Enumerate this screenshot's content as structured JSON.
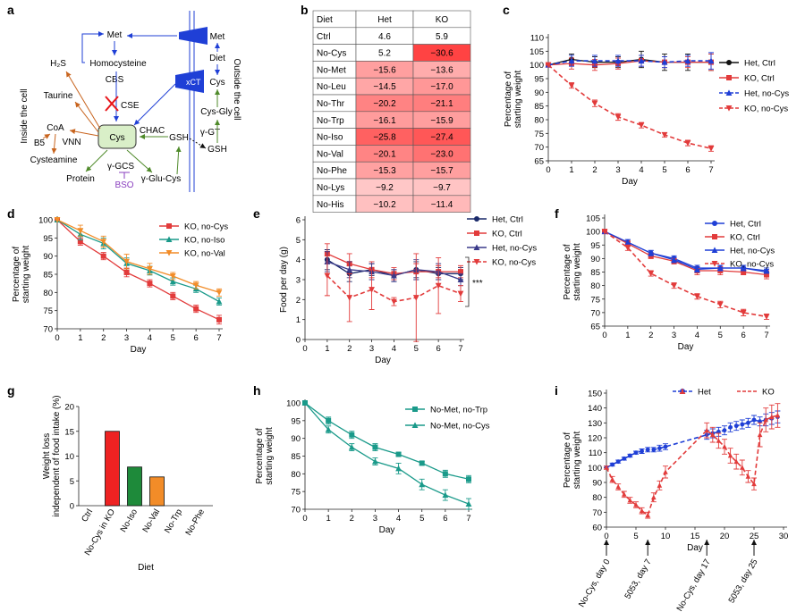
{
  "panel_labels": [
    "a",
    "b",
    "c",
    "d",
    "e",
    "f",
    "g",
    "h",
    "i"
  ],
  "colors": {
    "blue": "#1f3fd6",
    "black": "#111111",
    "red": "#e23b3b",
    "green": "#1e8a3a",
    "orange": "#f28c28",
    "teal": "#1a9a8a",
    "purple": "#8a3fbf",
    "brown": "#c8641e",
    "olive": "#4f8a2a"
  },
  "diagram": {
    "side_inside": "Inside the cell",
    "side_outside": "Outside the cell",
    "nodes": {
      "met_in": "Met",
      "homocysteine": "Homocysteine",
      "cbs": "CBS",
      "cse": "CSE",
      "h2s": "H₂S",
      "taurine": "Taurine",
      "coa": "CoA",
      "b5": "B5",
      "vnn": "VNN",
      "cysteamine": "Cysteamine",
      "cys_in": "Cys",
      "chac": "CHAC",
      "gsh_in": "GSH",
      "protein": "Protein",
      "ggcs": "γ-GCS",
      "bso": "BSO",
      "gglucys": "γ-Glu-Cys",
      "xct": "xCT",
      "met_out": "Met",
      "diet": "Diet",
      "cys_out": "Cys",
      "cysgly": "Cys-Gly",
      "ggt": "γ-GT",
      "gsh_out": "GSH"
    }
  },
  "chart_data": [
    {
      "panel": "b",
      "type": "table",
      "columns": [
        "Diet",
        "Het",
        "KO"
      ],
      "rows": [
        {
          "diet": "Ctrl",
          "het": 4.6,
          "ko": 5.9,
          "het_label": "4.6",
          "ko_label": "5.9"
        },
        {
          "diet": "No-Cys",
          "het": 5.2,
          "ko": -30.6,
          "het_label": "5.2",
          "ko_label": "−30.6"
        },
        {
          "diet": "No-Met",
          "het": -15.6,
          "ko": -13.6,
          "het_label": "−15.6",
          "ko_label": "−13.6"
        },
        {
          "diet": "No-Leu",
          "het": -14.5,
          "ko": -17.0,
          "het_label": "−14.5",
          "ko_label": "−17.0"
        },
        {
          "diet": "No-Thr",
          "het": -20.2,
          "ko": -21.1,
          "het_label": "−20.2",
          "ko_label": "−21.1"
        },
        {
          "diet": "No-Trp",
          "het": -16.1,
          "ko": -15.9,
          "het_label": "−16.1",
          "ko_label": "−15.9"
        },
        {
          "diet": "No-Iso",
          "het": -25.8,
          "ko": -27.4,
          "het_label": "−25.8",
          "ko_label": "−27.4"
        },
        {
          "diet": "No-Val",
          "het": -20.1,
          "ko": -23.0,
          "het_label": "−20.1",
          "ko_label": "−23.0"
        },
        {
          "diet": "No-Phe",
          "het": -15.3,
          "ko": -15.7,
          "het_label": "−15.3",
          "ko_label": "−15.7"
        },
        {
          "diet": "No-Lys",
          "het": -9.2,
          "ko": -9.7,
          "het_label": "−9.2",
          "ko_label": "−9.7"
        },
        {
          "diet": "No-His",
          "het": -10.2,
          "ko": -11.4,
          "het_label": "−10.2",
          "ko_label": "−11.4"
        }
      ]
    },
    {
      "panel": "c",
      "type": "line",
      "xlabel": "Day",
      "ylabel": "Percentage of starting weight",
      "xlim": [
        0,
        7
      ],
      "ylim": [
        65,
        110
      ],
      "xticks": [
        0,
        1,
        2,
        3,
        4,
        5,
        6,
        7
      ],
      "yticks": [
        65,
        70,
        75,
        80,
        85,
        90,
        95,
        100,
        105,
        110
      ],
      "legend_position": "right",
      "series": [
        {
          "name": "Het, Ctrl",
          "color": "#111111",
          "marker": "circle",
          "dash": false,
          "x": [
            0,
            1,
            2,
            3,
            4,
            5,
            6,
            7
          ],
          "y": [
            100,
            102,
            101,
            101,
            102,
            101,
            101,
            101
          ],
          "err": [
            0,
            2,
            2,
            2,
            3,
            3,
            3,
            3
          ]
        },
        {
          "name": "KO, Ctrl",
          "color": "#e23b3b",
          "marker": "square",
          "dash": false,
          "x": [
            0,
            1,
            2,
            3,
            4,
            5,
            6,
            7
          ],
          "y": [
            100,
            100.5,
            100,
            100.5,
            101.5,
            101,
            101,
            101
          ],
          "err": [
            0,
            2,
            2,
            2,
            2,
            2,
            2,
            3
          ]
        },
        {
          "name": "Het, no-Cys",
          "color": "#1f3fd6",
          "marker": "triangle",
          "dash": true,
          "x": [
            0,
            1,
            2,
            3,
            4,
            5,
            6,
            7
          ],
          "y": [
            100,
            101.5,
            101.5,
            101.5,
            101.5,
            101,
            101.5,
            101.5
          ],
          "err": [
            0,
            2,
            2,
            2,
            2,
            2,
            2,
            3
          ]
        },
        {
          "name": "KO, no-Cys",
          "color": "#e23b3b",
          "marker": "triangle-down",
          "dash": true,
          "x": [
            0,
            1,
            2,
            3,
            4,
            5,
            6,
            7
          ],
          "y": [
            100,
            92.5,
            86,
            81,
            78,
            74.5,
            71.5,
            69.5
          ],
          "err": [
            0,
            1,
            1.2,
            1.2,
            1,
            0.8,
            1,
            1
          ]
        }
      ]
    },
    {
      "panel": "d",
      "type": "line",
      "xlabel": "Day",
      "ylabel": "Percentage of starting weight",
      "xlim": [
        0,
        7
      ],
      "ylim": [
        70,
        100
      ],
      "xticks": [
        0,
        1,
        2,
        3,
        4,
        5,
        6,
        7
      ],
      "yticks": [
        70,
        75,
        80,
        85,
        90,
        95,
        100
      ],
      "legend_position": "top-right",
      "series": [
        {
          "name": "KO, no-Cys",
          "color": "#e23b3b",
          "marker": "square",
          "dash": false,
          "x": [
            0,
            1,
            2,
            3,
            4,
            5,
            6,
            7
          ],
          "y": [
            100,
            94,
            90,
            85.5,
            82.5,
            79,
            75.5,
            72.5
          ],
          "err": [
            0,
            1,
            1,
            1.2,
            1,
            1,
            1,
            1.2
          ]
        },
        {
          "name": "KO, no-Iso",
          "color": "#1a9a8a",
          "marker": "triangle",
          "dash": false,
          "x": [
            0,
            1,
            2,
            3,
            4,
            5,
            6,
            7
          ],
          "y": [
            100,
            96,
            93.5,
            88,
            86,
            83,
            81,
            77.5
          ],
          "err": [
            0,
            1.5,
            1.5,
            1.5,
            1.2,
            1,
            1,
            1
          ]
        },
        {
          "name": "KO, no-Val",
          "color": "#f28c28",
          "marker": "triangle-down",
          "dash": false,
          "x": [
            0,
            1,
            2,
            3,
            4,
            5,
            6,
            7
          ],
          "y": [
            100,
            97,
            94,
            88.5,
            86.5,
            84.5,
            82,
            80
          ],
          "err": [
            0,
            1.5,
            1.5,
            2,
            1.5,
            1,
            1,
            1
          ]
        }
      ]
    },
    {
      "panel": "e",
      "type": "line",
      "xlabel": "Day",
      "ylabel": "Food per day (g)",
      "xlim": [
        0,
        7
      ],
      "ylim": [
        0,
        6
      ],
      "xticks": [
        0,
        1,
        2,
        3,
        4,
        5,
        6,
        7
      ],
      "yticks": [
        0,
        1,
        2,
        3,
        4,
        5,
        6
      ],
      "legend_position": "top-right",
      "annotation": "***",
      "series": [
        {
          "name": "Het, Ctrl",
          "color": "#1a2a6a",
          "marker": "circle",
          "dash": false,
          "x": [
            1,
            2,
            3,
            4,
            5,
            6,
            7
          ],
          "y": [
            4.0,
            3.3,
            3.5,
            3.2,
            3.5,
            3.3,
            3.3
          ],
          "err": [
            0.5,
            0.4,
            0.3,
            0.3,
            0.4,
            0.3,
            0.3
          ]
        },
        {
          "name": "KO, Ctrl",
          "color": "#e23b3b",
          "marker": "square",
          "dash": false,
          "x": [
            1,
            2,
            3,
            4,
            5,
            6,
            7
          ],
          "y": [
            4.3,
            3.8,
            3.5,
            3.3,
            3.4,
            3.4,
            3.4
          ],
          "err": [
            0.5,
            0.5,
            0.4,
            0.3,
            0.4,
            0.3,
            0.3
          ]
        },
        {
          "name": "Het, no-Cys",
          "color": "#3a3a8a",
          "marker": "triangle",
          "dash": false,
          "x": [
            1,
            2,
            3,
            4,
            5,
            6,
            7
          ],
          "y": [
            3.9,
            3.5,
            3.4,
            3.2,
            3.5,
            3.4,
            3.0
          ],
          "err": [
            0.5,
            0.4,
            0.4,
            0.3,
            0.5,
            0.4,
            0.3
          ]
        },
        {
          "name": "KO, no-Cys",
          "color": "#e23b3b",
          "marker": "triangle-down",
          "dash": true,
          "x": [
            1,
            2,
            3,
            4,
            5,
            6,
            7
          ],
          "y": [
            3.2,
            2.1,
            2.5,
            1.9,
            2.1,
            2.7,
            2.3
          ],
          "err": [
            1.0,
            1.2,
            1.0,
            0.2,
            2.2,
            1.4,
            0.4
          ]
        }
      ]
    },
    {
      "panel": "f",
      "type": "line",
      "xlabel": "Day",
      "ylabel": "Percentage of starting weight",
      "xlim": [
        0,
        7
      ],
      "ylim": [
        65,
        105
      ],
      "xticks": [
        0,
        1,
        2,
        3,
        4,
        5,
        6,
        7
      ],
      "yticks": [
        65,
        70,
        75,
        80,
        85,
        90,
        95,
        100,
        105
      ],
      "legend_position": "top-right",
      "series": [
        {
          "name": "Het, Ctrl",
          "color": "#1f3fd6",
          "marker": "circle",
          "dash": false,
          "x": [
            0,
            1,
            2,
            3,
            4,
            5,
            6,
            7
          ],
          "y": [
            100,
            96,
            92,
            90,
            86.5,
            86.5,
            86.5,
            85
          ],
          "err": [
            0,
            1,
            1,
            1,
            1,
            1,
            1,
            1
          ]
        },
        {
          "name": "KO, Ctrl",
          "color": "#e23b3b",
          "marker": "square",
          "dash": false,
          "x": [
            0,
            1,
            2,
            3,
            4,
            5,
            6,
            7
          ],
          "y": [
            100,
            95.5,
            91,
            89,
            85.5,
            85.5,
            85,
            84
          ],
          "err": [
            0,
            1,
            1,
            1,
            1.5,
            1.5,
            1,
            1.5
          ]
        },
        {
          "name": "Het, no-Cys",
          "color": "#1f3fd6",
          "marker": "triangle",
          "dash": false,
          "x": [
            0,
            1,
            2,
            3,
            4,
            5,
            6,
            7
          ],
          "y": [
            100,
            96,
            92,
            89.5,
            86,
            86.5,
            86.5,
            85.5
          ],
          "err": [
            0,
            1,
            1,
            1,
            1,
            1,
            1,
            1
          ]
        },
        {
          "name": "KO, no-Cys",
          "color": "#e23b3b",
          "marker": "triangle-down",
          "dash": true,
          "x": [
            0,
            1,
            2,
            3,
            4,
            5,
            6,
            7
          ],
          "y": [
            100,
            94,
            84.5,
            80,
            76,
            73,
            70,
            68.5
          ],
          "err": [
            0,
            1,
            1,
            1,
            1,
            1.2,
            1.2,
            1
          ]
        }
      ]
    },
    {
      "panel": "g",
      "type": "bar",
      "xlabel": "Diet",
      "ylabel": "Weight loss independent of food intake (%)",
      "ylim": [
        0,
        20
      ],
      "yticks": [
        0,
        5,
        10,
        15,
        20
      ],
      "categories": [
        "Ctrl",
        "No-Cys in KO",
        "No-Iso",
        "No-Val",
        "No-Trp",
        "No-Phe"
      ],
      "values": [
        0,
        15,
        7.8,
        5.8,
        0,
        0
      ],
      "bar_colors": [
        "#ffffff",
        "#ee2222",
        "#1e8a3a",
        "#f28c28",
        "#ffffff",
        "#ffffff"
      ]
    },
    {
      "panel": "h",
      "type": "line",
      "xlabel": "Day",
      "ylabel": "Percentage of starting weight",
      "xlim": [
        0,
        7
      ],
      "ylim": [
        70,
        100
      ],
      "xticks": [
        0,
        1,
        2,
        3,
        4,
        5,
        6,
        7
      ],
      "yticks": [
        70,
        75,
        80,
        85,
        90,
        95,
        100
      ],
      "legend_position": "top-right",
      "series": [
        {
          "name": "No-Met, no-Trp",
          "color": "#1a9a8a",
          "marker": "square",
          "dash": false,
          "x": [
            0,
            1,
            2,
            3,
            4,
            5,
            6,
            7
          ],
          "y": [
            100,
            95,
            91,
            87.5,
            85.5,
            83,
            80,
            78.5
          ],
          "err": [
            0,
            1,
            1,
            1,
            0.5,
            0.5,
            1,
            1
          ]
        },
        {
          "name": "No-Met, no-Cys",
          "color": "#1a9a8a",
          "marker": "triangle",
          "dash": false,
          "x": [
            0,
            1,
            2,
            3,
            4,
            5,
            6,
            7
          ],
          "y": [
            100,
            92.5,
            87.5,
            83.5,
            81.5,
            77,
            74,
            71.5
          ],
          "err": [
            0,
            1,
            1,
            1,
            1.5,
            1.5,
            1.5,
            1.5
          ]
        }
      ]
    },
    {
      "panel": "i",
      "type": "line",
      "xlabel": "Day",
      "ylabel": "Percentage of starting weight",
      "xlim": [
        0,
        30
      ],
      "ylim": [
        60,
        150
      ],
      "xticks": [
        0,
        5,
        10,
        15,
        20,
        25,
        30
      ],
      "yticks": [
        60,
        70,
        80,
        90,
        100,
        110,
        120,
        130,
        140,
        150
      ],
      "legend_position": "top",
      "series": [
        {
          "name": "Het",
          "color": "#1f3fd6",
          "marker": "circle",
          "dash": true,
          "x": [
            0,
            1,
            2,
            3,
            4,
            5,
            6,
            7,
            8,
            9,
            10,
            17,
            18,
            19,
            20,
            21,
            22,
            23,
            24,
            25,
            26,
            27,
            28,
            29
          ],
          "y": [
            100,
            102,
            104,
            106,
            108,
            110,
            111,
            112,
            112,
            113,
            114,
            122,
            123,
            124,
            125,
            127,
            128,
            129,
            130,
            132,
            131,
            132,
            133,
            134
          ],
          "err": [
            1,
            1,
            1,
            1,
            1,
            1,
            1.5,
            1.5,
            1.5,
            2,
            2,
            3,
            3,
            3,
            3,
            3,
            3,
            3,
            3,
            3,
            3,
            4,
            4,
            4
          ]
        },
        {
          "name": "KO",
          "color": "#e23b3b",
          "marker": "triangle",
          "dash": true,
          "x": [
            0,
            1,
            2,
            3,
            4,
            5,
            6,
            7,
            8,
            9,
            10,
            17,
            18,
            19,
            20,
            21,
            22,
            23,
            24,
            25,
            26,
            27,
            28,
            29
          ],
          "y": [
            100,
            92,
            87,
            82,
            78,
            75,
            71,
            68,
            80,
            88,
            97,
            125,
            122,
            118,
            114,
            108,
            104,
            100,
            94,
            89,
            122,
            132,
            134,
            135
          ],
          "err": [
            1,
            2,
            2,
            2,
            2,
            2,
            2,
            2,
            3,
            3,
            4,
            5,
            5,
            5,
            5,
            5,
            5,
            5,
            4,
            4,
            8,
            8,
            8,
            8
          ]
        }
      ],
      "annotations": [
        "No-Cys, day 0",
        "5053, day 7",
        "No-Cys, day 17",
        "5053, day 25"
      ],
      "annotation_days": [
        0,
        7,
        17,
        25
      ]
    }
  ]
}
